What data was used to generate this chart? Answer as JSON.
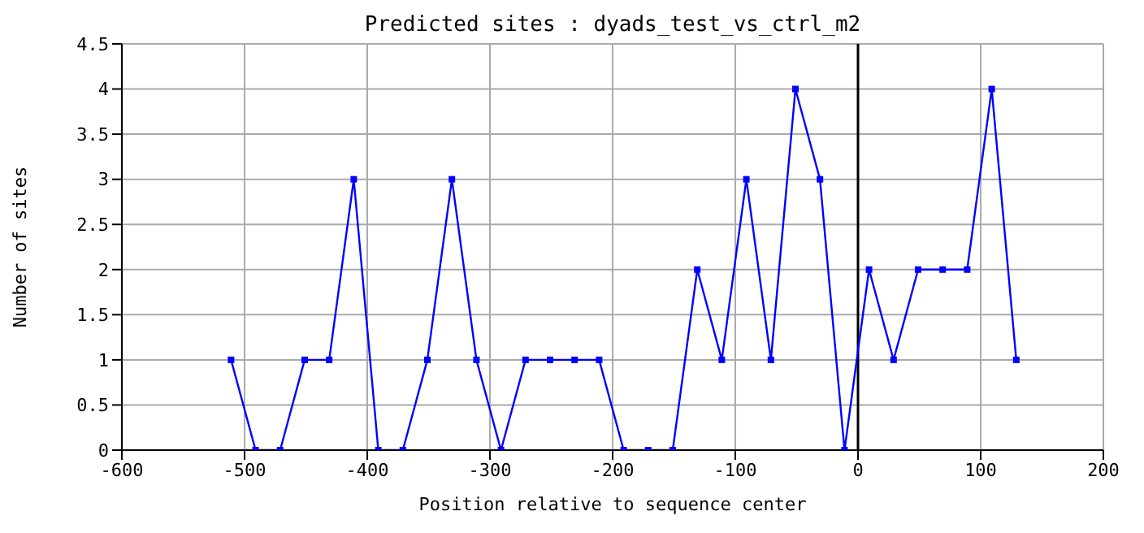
{
  "chart_data": {
    "type": "line",
    "title": "Predicted sites : dyads_test_vs_ctrl_m2",
    "xlabel": "Position relative to sequence center",
    "ylabel": "Number of sites",
    "x": [
      -511,
      -491,
      -471,
      -451,
      -431,
      -411,
      -391,
      -371,
      -351,
      -331,
      -311,
      -291,
      -271,
      -251,
      -231,
      -211,
      -191,
      -171,
      -151,
      -131,
      -111,
      -91,
      -71,
      -51,
      -31,
      -11,
      9,
      29,
      49,
      69,
      89,
      109,
      129
    ],
    "series": [
      {
        "color": "#0000ff",
        "values": [
          1,
          0,
          0,
          1,
          1,
          3,
          0,
          0,
          1,
          3,
          1,
          0,
          1,
          1,
          1,
          1,
          0,
          0,
          0,
          2,
          1,
          3,
          1,
          4,
          3,
          0,
          2,
          1,
          2,
          2,
          2,
          4,
          1
        ]
      }
    ],
    "xlim": [
      -600,
      200
    ],
    "xticks": [
      -600,
      -500,
      -400,
      -300,
      -200,
      -100,
      0,
      100,
      200
    ],
    "ylim": [
      0,
      4.5
    ],
    "yticks": [
      0,
      0.5,
      1,
      1.5,
      2,
      2.5,
      3,
      3.5,
      4,
      4.5
    ],
    "ref_lines": [
      {
        "axis": "x",
        "value": 0,
        "color": "#000000"
      }
    ],
    "grid": true,
    "marker": "square",
    "line_style": "solid"
  }
}
